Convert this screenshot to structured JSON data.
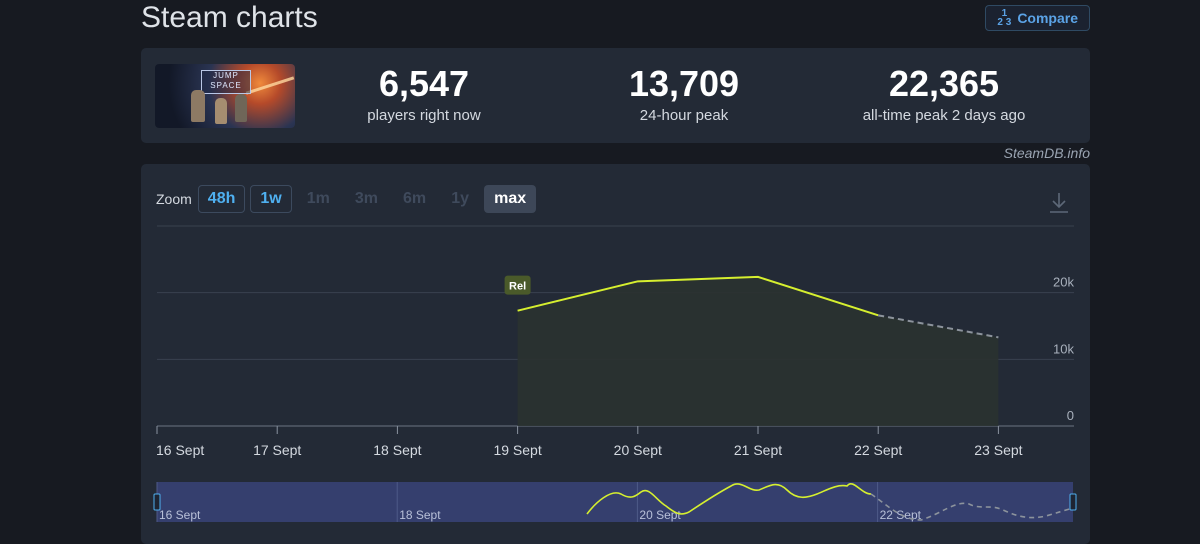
{
  "page_title": "Steam charts",
  "compare_label": "Compare",
  "stats": [
    {
      "value": "6,547",
      "label": "players right now"
    },
    {
      "value": "13,709",
      "label": "24-hour peak"
    },
    {
      "value": "22,365",
      "label": "all-time peak 2 days ago"
    }
  ],
  "game_logo_text": [
    "JUMP",
    "SPACE"
  ],
  "credit": "SteamDB.info",
  "zoom": {
    "label": "Zoom",
    "options": [
      {
        "label": "48h",
        "state": "enabled"
      },
      {
        "label": "1w",
        "state": "enabled"
      },
      {
        "label": "1m",
        "state": "disabled"
      },
      {
        "label": "3m",
        "state": "disabled"
      },
      {
        "label": "6m",
        "state": "disabled"
      },
      {
        "label": "1y",
        "state": "disabled"
      },
      {
        "label": "max",
        "state": "selected"
      }
    ]
  },
  "colors": {
    "line": "#d6ef2f",
    "navigator_band": "#353f6e"
  },
  "chart_data": {
    "type": "line",
    "x_tick_labels": [
      "16 Sept",
      "17 Sept",
      "18 Sept",
      "19 Sept",
      "20 Sept",
      "21 Sept",
      "22 Sept",
      "23 Sept"
    ],
    "y_tick_labels": [
      "0",
      "10k",
      "20k"
    ],
    "ylim": [
      0,
      30000
    ],
    "grid": true,
    "series": [
      {
        "style": "solid",
        "x": [
          "19 Sept",
          "20 Sept",
          "21 Sept",
          "22 Sept"
        ],
        "values": [
          17300,
          21700,
          22365,
          16600
        ]
      },
      {
        "style": "dashed",
        "x": [
          "22 Sept",
          "23 Sept"
        ],
        "values": [
          16600,
          13300
        ]
      }
    ],
    "annotations": [
      {
        "label": "Rel",
        "x": "19 Sept"
      }
    ],
    "navigator": {
      "tick_labels": [
        "16 Sept",
        "18 Sept",
        "20 Sept",
        "22 Sept"
      ]
    }
  }
}
